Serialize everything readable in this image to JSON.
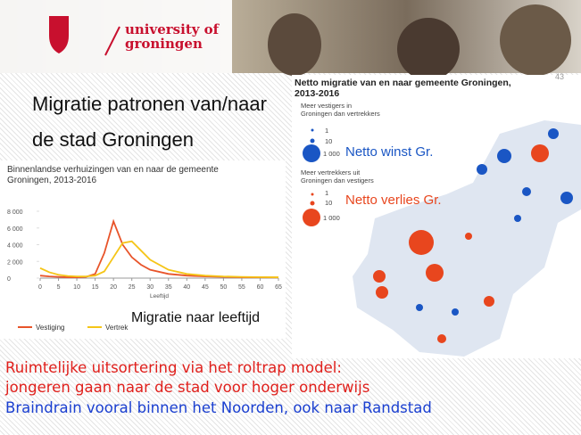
{
  "logo": {
    "line1": "university of",
    "line2": "groningen"
  },
  "page_number": "43",
  "title": {
    "line1": "Migratie patronen van/naar",
    "line2": "de stad Groningen"
  },
  "age_chart": {
    "type": "line",
    "title": {
      "line1": "Binnenlandse verhuizingen van en naar de gemeente",
      "line2": "Groningen, 2013-2016"
    },
    "x": [
      0,
      2.5,
      5,
      7.5,
      10,
      12.5,
      15,
      17.5,
      20,
      22.5,
      25,
      27.5,
      30,
      35,
      40,
      45,
      50,
      55,
      60,
      65
    ],
    "series": [
      {
        "name": "Vestiging",
        "color": "#e8542a",
        "values": [
          300,
          200,
          150,
          100,
          100,
          150,
          500,
          3000,
          6800,
          4000,
          2500,
          1600,
          1000,
          500,
          300,
          200,
          150,
          100,
          100,
          80
        ]
      },
      {
        "name": "Vertrek",
        "color": "#f5c518",
        "values": [
          1200,
          700,
          400,
          250,
          200,
          200,
          300,
          800,
          2500,
          4200,
          4400,
          3300,
          2200,
          1000,
          500,
          300,
          200,
          150,
          120,
          100
        ]
      }
    ],
    "xlim": [
      0,
      65
    ],
    "xticks": [
      0,
      5,
      10,
      15,
      20,
      25,
      30,
      35,
      40,
      45,
      50,
      55,
      60,
      65
    ],
    "ylim": [
      0,
      8000
    ],
    "yticks": [
      0,
      {
        "value": 2000,
        "label": "2 000"
      },
      {
        "value": 4000,
        "label": "4 000"
      },
      {
        "value": 6000,
        "label": "6 000"
      },
      {
        "value": 8000,
        "label": "8 000"
      }
    ],
    "x_label": "Leeftijd",
    "caption": "Migratie naar leeftijd"
  },
  "map": {
    "title": {
      "line1": "Netto migratie van en naar gemeente Groningen,",
      "line2": "2013-2016"
    },
    "gain": {
      "heading": {
        "line1": "Meer vestigers in",
        "line2": "Groningen dan vertrekkers"
      },
      "sizes": [
        "1",
        "10",
        "1 000"
      ],
      "label": "Netto winst Gr."
    },
    "loss": {
      "heading": {
        "line1": "Meer vertrekkers uit",
        "line2": "Groningen dan vestigers"
      },
      "sizes": [
        "1",
        "10",
        "1 000"
      ],
      "label": "Netto verlies Gr."
    }
  },
  "bullets": [
    "Ruimtelijke uitsortering via het roltrap model:",
    "jongeren gaan naar de stad voor hoger onderwijs",
    "Braindrain vooral binnen het Noorden, ook naar Randstad"
  ]
}
